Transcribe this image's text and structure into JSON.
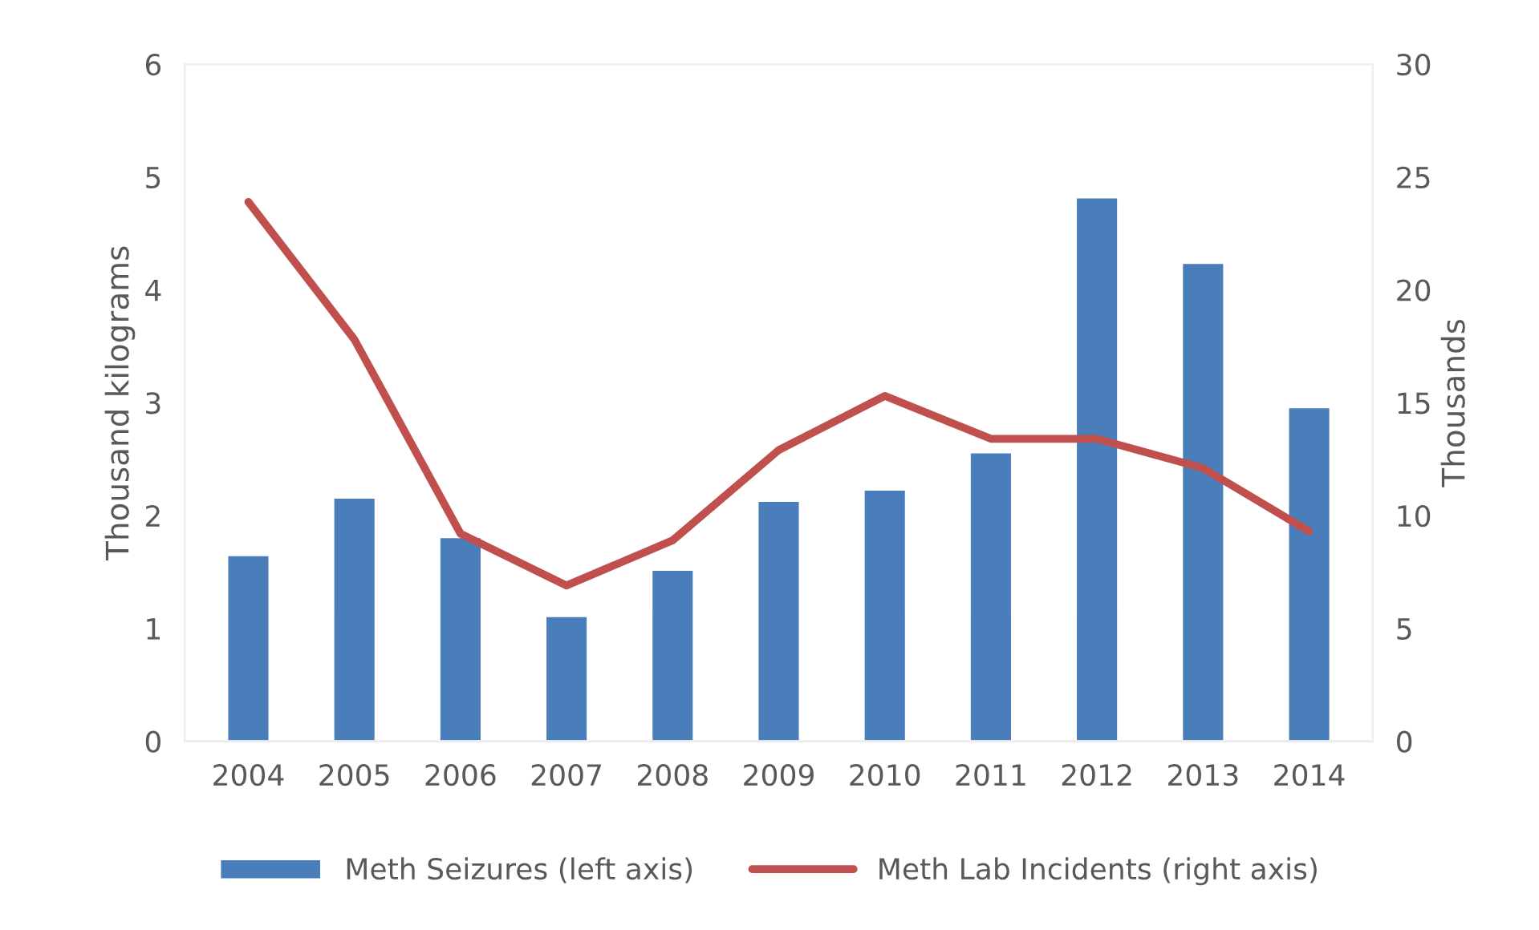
{
  "chart_data": {
    "type": "bar",
    "categories": [
      "2004",
      "2005",
      "2006",
      "2007",
      "2008",
      "2009",
      "2010",
      "2011",
      "2012",
      "2013",
      "2014"
    ],
    "series": [
      {
        "name": "Meth Seizures (left axis)",
        "color": "#4a7ebb",
        "values": [
          1.65,
          2.16,
          1.81,
          1.11,
          1.52,
          2.13,
          2.23,
          2.56,
          4.82,
          4.24,
          2.96
        ]
      },
      {
        "name": "Meth Lab Incidents (right axis)",
        "type": "line",
        "axis": "y2",
        "color": "#c0504d",
        "values": [
          23.9,
          17.8,
          9.2,
          6.9,
          8.9,
          12.9,
          15.3,
          13.4,
          13.4,
          12.1,
          9.3
        ]
      }
    ],
    "ylabel": "Thousand kilograms",
    "y2label": "Thousands",
    "ylim": [
      0,
      6
    ],
    "yticks": [
      0,
      1,
      2,
      3,
      4,
      5,
      6
    ],
    "y2lim": [
      0,
      30
    ],
    "y2ticks": [
      0,
      5,
      10,
      15,
      20,
      25,
      30
    ],
    "grid": false,
    "legend": "bottom",
    "marker": "none",
    "line_style": "solid"
  }
}
